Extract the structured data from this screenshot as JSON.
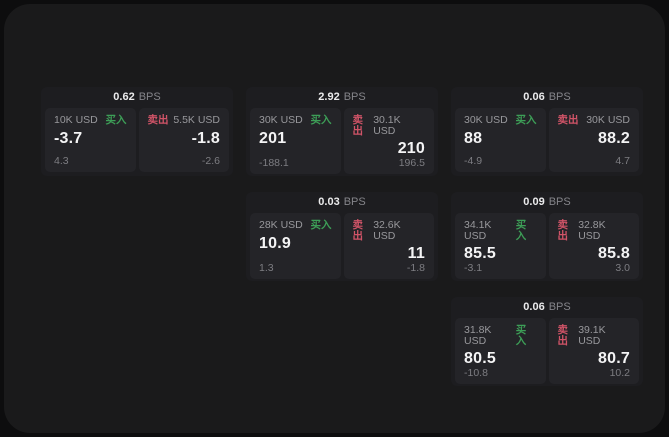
{
  "labels": {
    "bps": "BPS",
    "buy": "买入",
    "sell": "卖出"
  },
  "colors": {
    "buy_green": "#3d9e57",
    "sell_red": "#d15468",
    "page_bg": "#0d0d0e",
    "window_bg": "#1a1a1b",
    "card_bg": "#1d1d20",
    "panel_bg": "#242428",
    "value_text": "#f4f4f5",
    "muted_text": "#98989c"
  },
  "cards": [
    {
      "bps": "0.62",
      "buy": {
        "size": "10K USD",
        "value": "-3.7",
        "sub": "4.3"
      },
      "sell": {
        "size": "5.5K USD",
        "value": "-1.8",
        "sub": "-2.6"
      }
    },
    {
      "bps": "2.92",
      "buy": {
        "size": "30K USD",
        "value": "201",
        "sub": "-188.1"
      },
      "sell": {
        "size": "30.1K USD",
        "value": "210",
        "sub": "196.5"
      }
    },
    {
      "bps": "0.06",
      "buy": {
        "size": "30K USD",
        "value": "88",
        "sub": "-4.9"
      },
      "sell": {
        "size": "30K USD",
        "value": "88.2",
        "sub": "4.7"
      }
    },
    {
      "bps": "0.03",
      "buy": {
        "size": "28K USD",
        "value": "10.9",
        "sub": "1.3"
      },
      "sell": {
        "size": "32.6K USD",
        "value": "11",
        "sub": "-1.8"
      }
    },
    {
      "bps": "0.09",
      "buy": {
        "size": "34.1K USD",
        "value": "85.5",
        "sub": "-3.1"
      },
      "sell": {
        "size": "32.8K USD",
        "value": "85.8",
        "sub": "3.0"
      }
    },
    {
      "bps": "0.06",
      "buy": {
        "size": "31.8K USD",
        "value": "80.5",
        "sub": "-10.8"
      },
      "sell": {
        "size": "39.1K USD",
        "value": "80.7",
        "sub": "10.2"
      }
    }
  ]
}
